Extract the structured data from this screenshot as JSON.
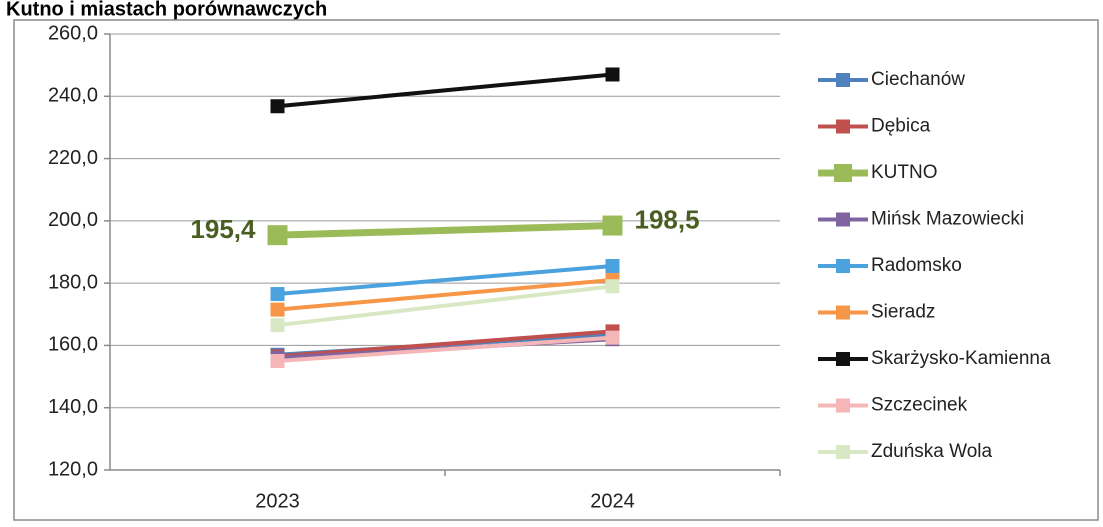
{
  "chart_data": {
    "type": "line",
    "title": "Kutno i miastach porównawczych",
    "xlabel": "",
    "ylabel": "",
    "categories": [
      "2023",
      "2024"
    ],
    "ylim": [
      120,
      260
    ],
    "yticks": [
      "120,0",
      "140,0",
      "160,0",
      "180,0",
      "200,0",
      "220,0",
      "240,0",
      "260,0"
    ],
    "grid": true,
    "legend_position": "right",
    "series": [
      {
        "name": "Ciechanów",
        "values": [
          157.0,
          163.5
        ],
        "color": "#4f81bd"
      },
      {
        "name": "Dębica",
        "values": [
          156.5,
          164.5
        ],
        "color": "#c0504d"
      },
      {
        "name": "KUTNO",
        "values": [
          195.4,
          198.5
        ],
        "color": "#9bbb59",
        "data_labels": [
          "195,4",
          "198,5"
        ]
      },
      {
        "name": "Mińsk Mazowiecki",
        "values": [
          156.0,
          162.0
        ],
        "color": "#8064a2"
      },
      {
        "name": "Radomsko",
        "values": [
          176.5,
          185.5
        ],
        "color": "#4aa3df"
      },
      {
        "name": "Sieradz",
        "values": [
          171.5,
          181.0
        ],
        "color": "#f79646"
      },
      {
        "name": "Skarżysko-Kamienna",
        "values": [
          236.8,
          247.0
        ],
        "color": "#111111"
      },
      {
        "name": "Szczecinek",
        "values": [
          155.0,
          162.5
        ],
        "color": "#f4b6b6"
      },
      {
        "name": "Zduńska Wola",
        "values": [
          166.5,
          179.0
        ],
        "color": "#d9e8c4"
      }
    ]
  }
}
